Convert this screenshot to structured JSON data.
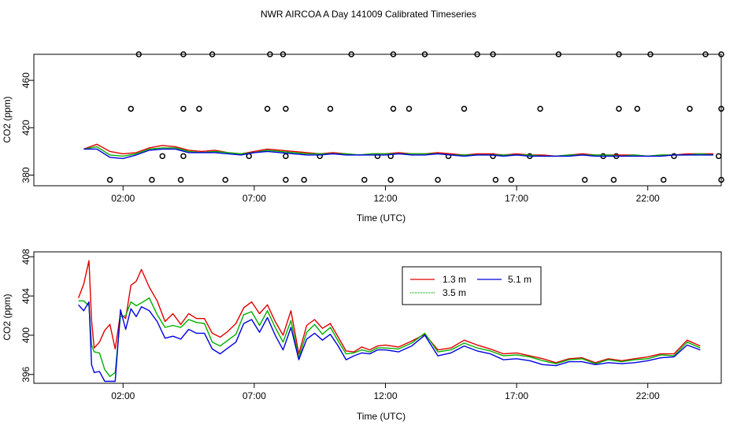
{
  "title": "NWR AIRCOA A  Day 141009  Calibrated Timeseries",
  "colors": {
    "1.3 m": "#e00000",
    "3.5 m": "#00b000",
    "5.1 m": "#0000e0",
    "frame": "#000000"
  },
  "chart_data": [
    {
      "type": "scatter",
      "xlabel": "Time (UTC)",
      "ylabel": "CO2 (ppm)",
      "x_ticks": [
        "02:00",
        "07:00",
        "12:00",
        "17:00",
        "22:00"
      ],
      "y_ticks": [
        "380",
        "420",
        "460"
      ],
      "y_tick_values": [
        380,
        420,
        460
      ],
      "xlim": [
        -1.4,
        24.8
      ],
      "ylim": [
        371,
        482
      ],
      "grid": false,
      "calibration_points_y": [
        [
          1.5,
          376
        ],
        [
          2.3,
          436
        ],
        [
          2.6,
          482
        ],
        [
          3.1,
          376
        ],
        [
          3.5,
          396
        ],
        [
          4.2,
          376
        ],
        [
          4.3,
          396
        ],
        [
          4.3,
          436
        ],
        [
          4.3,
          482
        ],
        [
          4.9,
          436
        ],
        [
          5.4,
          482
        ],
        [
          5.9,
          376
        ],
        [
          6.8,
          396
        ],
        [
          7.5,
          436
        ],
        [
          7.6,
          482
        ],
        [
          8.1,
          482
        ],
        [
          8.2,
          436
        ],
        [
          8.2,
          396
        ],
        [
          8.2,
          376
        ],
        [
          8.9,
          376
        ],
        [
          9.5,
          396
        ],
        [
          9.9,
          436
        ],
        [
          10.7,
          482
        ],
        [
          11.2,
          376
        ],
        [
          11.7,
          396
        ],
        [
          12.2,
          396
        ],
        [
          12.2,
          376
        ],
        [
          12.3,
          436
        ],
        [
          12.3,
          482
        ],
        [
          12.9,
          436
        ],
        [
          13.5,
          482
        ],
        [
          14.0,
          376
        ],
        [
          14.4,
          396
        ],
        [
          15.0,
          436
        ],
        [
          15.5,
          482
        ],
        [
          16.1,
          396
        ],
        [
          16.1,
          482
        ],
        [
          16.2,
          376
        ],
        [
          16.8,
          376
        ],
        [
          17.5,
          396
        ],
        [
          17.9,
          436
        ],
        [
          18.6,
          482
        ],
        [
          19.6,
          376
        ],
        [
          20.3,
          396
        ],
        [
          20.7,
          376
        ],
        [
          20.8,
          396
        ],
        [
          20.9,
          436
        ],
        [
          20.9,
          482
        ],
        [
          21.6,
          436
        ],
        [
          22.1,
          482
        ],
        [
          22.6,
          376
        ],
        [
          23.0,
          396
        ],
        [
          23.6,
          436
        ],
        [
          24.2,
          482
        ],
        [
          24.7,
          396
        ],
        [
          24.8,
          376
        ],
        [
          24.8,
          436
        ],
        [
          24.8,
          482
        ]
      ],
      "series": [
        {
          "name": "1.3 m",
          "x": [
            0.5,
            1.0,
            1.5,
            2.0,
            2.5,
            3.0,
            3.5,
            4.0,
            4.5,
            5.0,
            5.5,
            6.0,
            6.5,
            7.0,
            7.5,
            8.0,
            8.5,
            9.0,
            9.5,
            10.0,
            10.5,
            11.0,
            11.5,
            12.0,
            12.5,
            13.0,
            13.5,
            14.0,
            14.5,
            15.0,
            15.5,
            16.0,
            16.5,
            17.0,
            17.5,
            18.0,
            18.5,
            19.0,
            19.5,
            20.0,
            20.5,
            21.0,
            21.5,
            22.0,
            22.5,
            23.0,
            23.5,
            24.0,
            24.5
          ],
          "values": [
            402,
            406,
            400,
            398,
            399,
            403,
            405,
            404,
            401,
            400,
            401,
            399,
            398,
            400,
            402,
            401,
            400,
            399,
            398,
            399,
            398,
            397,
            398,
            398,
            399,
            398,
            398,
            399,
            398,
            397,
            398,
            398,
            397,
            398,
            397,
            397,
            396,
            397,
            398,
            397,
            397,
            397,
            397,
            396,
            397,
            397,
            398,
            398,
            398
          ]
        },
        {
          "name": "3.5 m",
          "x": [
            0.5,
            1.0,
            1.5,
            2.0,
            2.5,
            3.0,
            3.5,
            4.0,
            4.5,
            5.0,
            5.5,
            6.0,
            6.5,
            7.0,
            7.5,
            8.0,
            8.5,
            9.0,
            9.5,
            10.0,
            10.5,
            11.0,
            11.5,
            12.0,
            12.5,
            13.0,
            13.5,
            14.0,
            14.5,
            15.0,
            15.5,
            16.0,
            16.5,
            17.0,
            17.5,
            18.0,
            18.5,
            19.0,
            19.5,
            20.0,
            20.5,
            21.0,
            21.5,
            22.0,
            22.5,
            23.0,
            23.5,
            24.0,
            24.5
          ],
          "values": [
            402,
            404,
            397,
            396,
            398,
            402,
            403,
            403,
            400,
            399,
            400,
            399,
            398,
            399,
            401,
            400,
            399,
            398,
            398,
            398,
            398,
            397,
            398,
            398,
            398,
            398,
            398,
            398,
            397,
            397,
            397,
            397,
            397,
            397,
            397,
            396,
            396,
            397,
            397,
            397,
            397,
            396,
            397,
            396,
            397,
            397,
            397,
            398,
            397
          ]
        },
        {
          "name": "5.1 m",
          "x": [
            0.5,
            1.0,
            1.5,
            2.0,
            2.5,
            3.0,
            3.5,
            4.0,
            4.5,
            5.0,
            5.5,
            6.0,
            6.5,
            7.0,
            7.5,
            8.0,
            8.5,
            9.0,
            9.5,
            10.0,
            10.5,
            11.0,
            11.5,
            12.0,
            12.5,
            13.0,
            13.5,
            14.0,
            14.5,
            15.0,
            15.5,
            16.0,
            16.5,
            17.0,
            17.5,
            18.0,
            18.5,
            19.0,
            19.5,
            20.0,
            20.5,
            21.0,
            21.5,
            22.0,
            22.5,
            23.0,
            23.5,
            24.0,
            24.5
          ],
          "values": [
            402,
            402,
            395,
            394,
            397,
            401,
            402,
            402,
            399,
            399,
            399,
            398,
            397,
            399,
            400,
            399,
            398,
            397,
            397,
            398,
            397,
            397,
            397,
            397,
            398,
            397,
            397,
            398,
            397,
            396,
            397,
            397,
            396,
            397,
            396,
            396,
            396,
            396,
            397,
            396,
            396,
            396,
            396,
            396,
            396,
            397,
            397,
            397,
            397
          ]
        }
      ]
    },
    {
      "type": "line",
      "xlabel": "Time (UTC)",
      "ylabel": "CO2 (ppm)",
      "x_ticks": [
        "02:00",
        "07:00",
        "12:00",
        "17:00",
        "22:00"
      ],
      "y_ticks": [
        "396",
        "400",
        "404",
        "408"
      ],
      "y_tick_values": [
        396,
        400,
        404,
        408
      ],
      "xlim": [
        -1.4,
        24.8
      ],
      "ylim": [
        395.1,
        408.5
      ],
      "grid": false,
      "legend": {
        "placement": "top-right-center",
        "entries": [
          "1.3 m",
          "5.1 m",
          "3.5 m"
        ]
      },
      "series": [
        {
          "name": "1.3 m",
          "x": [
            0.3,
            0.5,
            0.7,
            0.8,
            0.9,
            1.1,
            1.3,
            1.5,
            1.7,
            1.9,
            2.1,
            2.3,
            2.5,
            2.7,
            3.0,
            3.3,
            3.6,
            3.9,
            4.2,
            4.5,
            4.8,
            5.1,
            5.4,
            5.7,
            6.0,
            6.3,
            6.6,
            6.9,
            7.2,
            7.5,
            7.8,
            8.1,
            8.4,
            8.7,
            9.0,
            9.3,
            9.6,
            9.9,
            10.2,
            10.5,
            10.8,
            11.1,
            11.4,
            11.7,
            12.0,
            12.5,
            13.0,
            13.5,
            14.0,
            14.5,
            15.0,
            15.5,
            16.0,
            16.5,
            17.0,
            17.5,
            18.0,
            18.5,
            19.0,
            19.5,
            20.0,
            20.5,
            21.0,
            21.5,
            22.0,
            22.5,
            23.0,
            23.5,
            24.0
          ],
          "values": [
            403.8,
            405.2,
            407.6,
            401.5,
            398.7,
            399.3,
            400.5,
            401.1,
            398.6,
            402.2,
            401.7,
            405.1,
            405.5,
            406.7,
            404.9,
            403.5,
            401.4,
            402.2,
            401.1,
            402.2,
            401.7,
            401.7,
            400.2,
            399.8,
            400.4,
            401.2,
            402.8,
            403.4,
            402.2,
            403.1,
            401.4,
            400.0,
            402.5,
            398.1,
            401.0,
            401.6,
            400.7,
            401.2,
            399.8,
            398.4,
            398.3,
            398.8,
            398.5,
            398.9,
            399.0,
            398.8,
            399.4,
            400.1,
            398.5,
            398.7,
            399.5,
            399.0,
            398.6,
            398.1,
            398.2,
            397.9,
            397.6,
            397.2,
            397.6,
            397.7,
            397.2,
            397.6,
            397.4,
            397.6,
            397.8,
            398.1,
            398.1,
            399.5,
            398.9
          ]
        },
        {
          "name": "3.5 m",
          "x": [
            0.3,
            0.5,
            0.7,
            0.8,
            0.9,
            1.1,
            1.3,
            1.5,
            1.7,
            1.9,
            2.1,
            2.3,
            2.5,
            2.7,
            3.0,
            3.3,
            3.6,
            3.9,
            4.2,
            4.5,
            4.8,
            5.1,
            5.4,
            5.7,
            6.0,
            6.3,
            6.6,
            6.9,
            7.2,
            7.5,
            7.8,
            8.1,
            8.4,
            8.7,
            9.0,
            9.3,
            9.6,
            9.9,
            10.2,
            10.5,
            10.8,
            11.1,
            11.4,
            11.7,
            12.0,
            12.5,
            13.0,
            13.5,
            14.0,
            14.5,
            15.0,
            15.5,
            16.0,
            16.5,
            17.0,
            17.5,
            18.0,
            18.5,
            19.0,
            19.5,
            20.0,
            20.5,
            21.0,
            21.5,
            22.0,
            22.5,
            23.0,
            23.5,
            24.0
          ],
          "values": [
            403.5,
            403.5,
            403.0,
            399.0,
            398.3,
            398.2,
            396.5,
            395.8,
            396.2,
            401.9,
            402.0,
            403.4,
            403.0,
            403.3,
            403.8,
            402.1,
            400.8,
            401.0,
            400.8,
            401.6,
            401.3,
            401.2,
            399.3,
            398.9,
            399.5,
            400.1,
            402.1,
            402.4,
            401.0,
            402.5,
            400.8,
            399.3,
            401.5,
            397.7,
            400.3,
            401.1,
            400.1,
            400.8,
            399.4,
            398.1,
            398.2,
            398.5,
            398.3,
            398.7,
            398.7,
            398.6,
            399.2,
            400.2,
            398.3,
            398.5,
            399.2,
            398.7,
            398.4,
            397.9,
            398.0,
            397.8,
            397.4,
            397.1,
            397.5,
            397.6,
            397.1,
            397.5,
            397.3,
            397.5,
            397.6,
            398.0,
            397.9,
            399.3,
            398.7
          ]
        },
        {
          "name": "5.1 m",
          "x": [
            0.3,
            0.5,
            0.7,
            0.8,
            0.9,
            1.1,
            1.3,
            1.5,
            1.7,
            1.9,
            2.1,
            2.3,
            2.5,
            2.7,
            3.0,
            3.3,
            3.6,
            3.9,
            4.2,
            4.5,
            4.8,
            5.1,
            5.4,
            5.7,
            6.0,
            6.3,
            6.6,
            6.9,
            7.2,
            7.5,
            7.8,
            8.1,
            8.4,
            8.7,
            9.0,
            9.3,
            9.6,
            9.9,
            10.2,
            10.5,
            10.8,
            11.1,
            11.4,
            11.7,
            12.0,
            12.5,
            13.0,
            13.5,
            14.0,
            14.5,
            15.0,
            15.5,
            16.0,
            16.5,
            17.0,
            17.5,
            18.0,
            18.5,
            19.0,
            19.5,
            20.0,
            20.5,
            21.0,
            21.5,
            22.0,
            22.5,
            23.0,
            23.5,
            24.0
          ],
          "values": [
            403.1,
            402.5,
            403.4,
            397.0,
            396.2,
            396.3,
            395.3,
            395.3,
            395.3,
            402.6,
            400.6,
            402.7,
            401.9,
            402.9,
            402.5,
            401.4,
            399.7,
            399.9,
            399.6,
            400.6,
            400.2,
            400.2,
            398.6,
            398.1,
            398.7,
            399.3,
            401.2,
            401.6,
            400.3,
            401.8,
            400.0,
            398.5,
            400.8,
            397.5,
            399.6,
            400.2,
            399.5,
            400.1,
            398.9,
            397.5,
            397.9,
            398.2,
            398.1,
            398.5,
            398.5,
            398.3,
            398.9,
            400.0,
            397.9,
            398.2,
            398.9,
            398.4,
            398.1,
            397.5,
            397.6,
            397.4,
            397.0,
            396.9,
            397.3,
            397.3,
            397.0,
            397.2,
            397.1,
            397.2,
            397.4,
            397.7,
            397.8,
            399.0,
            398.5
          ]
        }
      ]
    }
  ]
}
